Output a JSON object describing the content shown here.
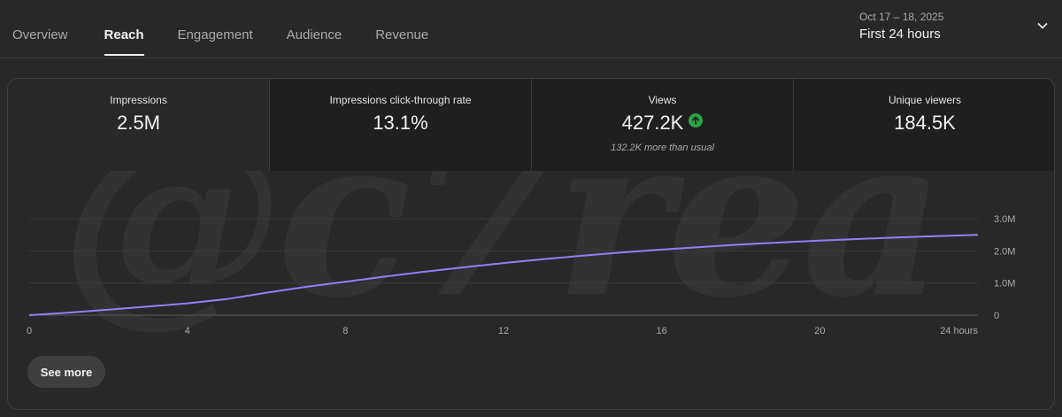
{
  "tabs": [
    {
      "label": "Overview",
      "active": false
    },
    {
      "label": "Reach",
      "active": true
    },
    {
      "label": "Engagement",
      "active": false
    },
    {
      "label": "Audience",
      "active": false
    },
    {
      "label": "Revenue",
      "active": false
    }
  ],
  "range": {
    "dates": "Oct 17 – 18, 2025",
    "period": "First 24 hours",
    "icon": "chevron-down-icon"
  },
  "metrics": [
    {
      "label": "Impressions",
      "value": "2.5M",
      "selected": true
    },
    {
      "label": "Impressions click-through rate",
      "value": "13.1%",
      "selected": false
    },
    {
      "label": "Views",
      "value": "427.2K",
      "note": "132.2K more than usual",
      "icon": "arrow-up-circle-icon",
      "icon_color": "#2ba640",
      "selected": false
    },
    {
      "label": "Unique viewers",
      "value": "184.5K",
      "selected": false
    }
  ],
  "watermark": "@c7rea",
  "chart_data": {
    "type": "line",
    "series": [
      {
        "color": "#8e82f2",
        "x": [
          0,
          1,
          2,
          3,
          4,
          5,
          6,
          7,
          8,
          9,
          10,
          11,
          12,
          13,
          14,
          15,
          16,
          17,
          18,
          19,
          20,
          21,
          22,
          23,
          24
        ],
        "y": [
          0,
          0.08,
          0.17,
          0.27,
          0.37,
          0.5,
          0.7,
          0.88,
          1.04,
          1.2,
          1.35,
          1.49,
          1.62,
          1.74,
          1.85,
          1.95,
          2.04,
          2.12,
          2.2,
          2.26,
          2.32,
          2.37,
          2.42,
          2.46,
          2.5
        ]
      }
    ],
    "x_ticks": [
      "0",
      "4",
      "8",
      "12",
      "16",
      "20",
      "24 hours"
    ],
    "y_ticks": [
      "0",
      "1.0M",
      "2.0M",
      "3.0M"
    ],
    "xlim": [
      0,
      24
    ],
    "ylim": [
      0,
      3.0
    ],
    "y_unit": "M",
    "grid": true
  },
  "see_more_label": "See more"
}
